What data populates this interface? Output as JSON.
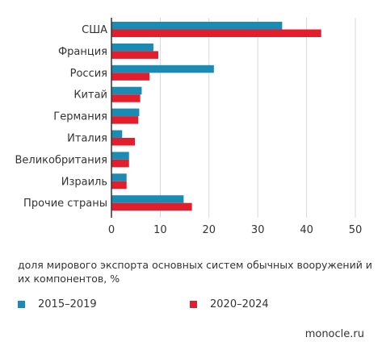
{
  "chart_data": {
    "type": "bar",
    "orientation": "horizontal",
    "categories": [
      "США",
      "Франция",
      "Россия",
      "Китай",
      "Германия",
      "Италия",
      "Великобритания",
      "Израиль",
      "Прочие страны"
    ],
    "series": [
      {
        "name": "2015–2019",
        "color": "#1a8cb4",
        "values": [
          35,
          8.6,
          21,
          6.2,
          5.7,
          2.2,
          3.6,
          3.1,
          14.8
        ]
      },
      {
        "name": "2020–2024",
        "color": "#e31e2c",
        "values": [
          43,
          9.6,
          7.8,
          5.9,
          5.5,
          4.8,
          3.6,
          3.1,
          16.5
        ]
      }
    ],
    "xlim": [
      0,
      50
    ],
    "xticks": [
      0,
      10,
      20,
      30,
      40,
      50
    ],
    "xlabel": "доля мирового экспорта основных систем обычных вооружений и их компонентов, %",
    "grid": true,
    "legend": "bottom"
  },
  "footer": {
    "brand": "monocle.ru"
  }
}
